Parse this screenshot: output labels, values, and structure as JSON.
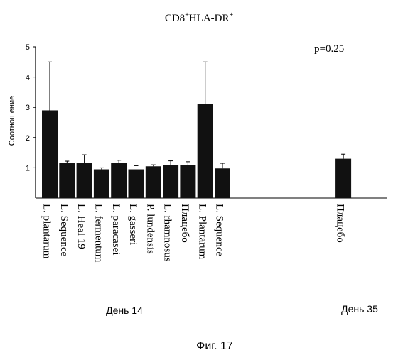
{
  "chart_data": {
    "type": "bar",
    "title_main": "CD8",
    "title_sup1": "+",
    "title_mid": "HLA-DR",
    "title_sup2": "+",
    "ylabel": "Соотношение",
    "annotation": "p=0.25",
    "ylim": [
      0,
      5
    ],
    "yticks": [
      "1",
      "2",
      "3",
      "4",
      "5"
    ],
    "grid": false,
    "bar_color": "#111111",
    "categories": [
      "L. plantarum",
      "L. Sequence",
      "L. Heal 19",
      "L. fermentum",
      "L. paracasei",
      "L. gasseri",
      "P. lundensis",
      "L. rhamnosus",
      "Плацебо",
      "L. Plantarum",
      "L. Sequence",
      "",
      "",
      "",
      "",
      "",
      "",
      "Плацебо"
    ],
    "values": [
      2.9,
      1.15,
      1.15,
      0.95,
      1.15,
      0.95,
      1.05,
      1.1,
      1.1,
      3.1,
      0.98,
      null,
      null,
      null,
      null,
      null,
      null,
      1.3
    ],
    "error_plus": [
      1.6,
      0.07,
      0.28,
      0.05,
      0.1,
      0.12,
      0.05,
      0.13,
      0.1,
      1.4,
      0.17,
      null,
      null,
      null,
      null,
      null,
      null,
      0.15
    ],
    "group_labels": [
      "День 14",
      "День 35"
    ],
    "figure_caption": "Фиг. 17"
  }
}
